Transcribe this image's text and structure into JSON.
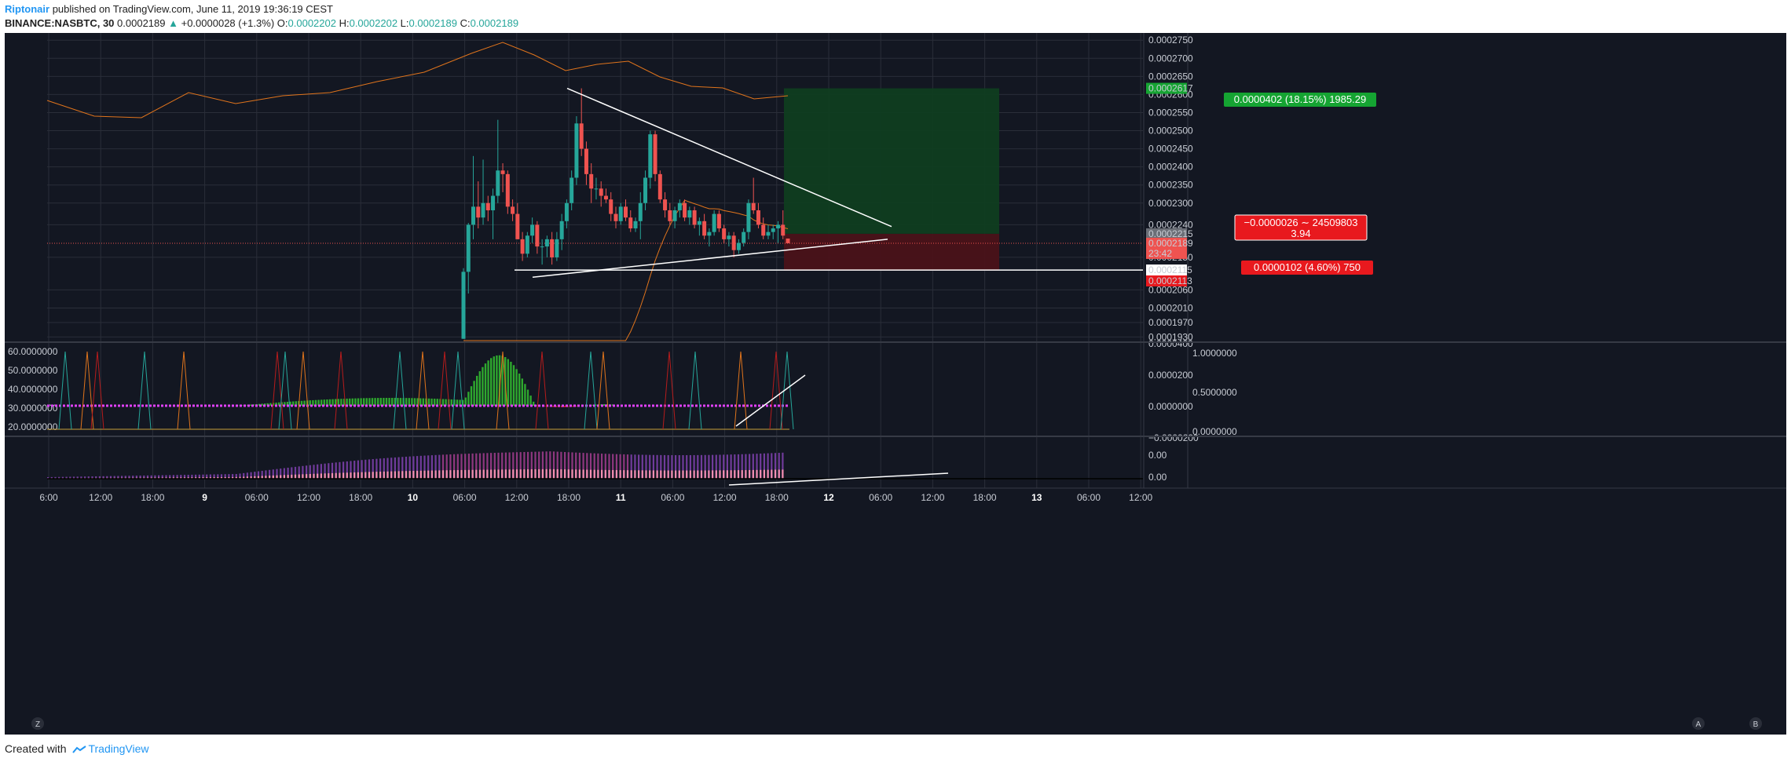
{
  "header": {
    "author": "Riptonair",
    "published_text": "published on TradingView.com, June 11, 2019 19:36:19 CEST",
    "symbol": "BINANCE:NASBTC, 30",
    "last": "0.0002189",
    "change": "+0.0000028 (+1.3%)",
    "o_label": "O:",
    "o": "0.0002202",
    "h_label": "H:",
    "h": "0.0002202",
    "l_label": "L:",
    "l": "0.0002189",
    "c_label": "C:",
    "c": "0.0002189"
  },
  "footer": {
    "created_with": "Created with",
    "brand": "TradingView"
  },
  "colors": {
    "background": "#131722",
    "grid": "#2a2e39",
    "up": "#26a69a",
    "down": "#ef5350",
    "target_zone": "#0f3d20",
    "stop_zone": "#4a1219",
    "ma": "#e0741c"
  },
  "chart_data": {
    "type": "candlestick",
    "price_axis": {
      "ticks": [
        "0.0002750",
        "0.0002700",
        "0.0002650",
        "0.0002600",
        "0.0002550",
        "0.0002500",
        "0.0002450",
        "0.0002400",
        "0.0002350",
        "0.0002300",
        "0.0002240",
        "0.0002150",
        "0.0002060",
        "0.0002010",
        "0.0001970",
        "0.0001930"
      ],
      "ylim": [
        0.000192,
        0.000277
      ]
    },
    "price_badges": [
      {
        "value": "0.0002617",
        "bg": "#15a432"
      },
      {
        "value": "0.0002215",
        "bg": "#6b6f77"
      },
      {
        "value": "0.0002189",
        "bg": "#ef5350"
      },
      {
        "value": "23:42",
        "bg": "#ef5350"
      },
      {
        "value": "0.0002115",
        "bg": "#ffffff"
      },
      {
        "value": "0.0002113",
        "bg": "#e8191e"
      }
    ],
    "time_axis": {
      "ticks": [
        "6:00",
        "12:00",
        "18:00",
        "9",
        "06:00",
        "12:00",
        "18:00",
        "10",
        "06:00",
        "12:00",
        "18:00",
        "11",
        "06:00",
        "12:00",
        "18:00",
        "12",
        "06:00",
        "12:00",
        "18:00",
        "13",
        "06:00",
        "12:00"
      ]
    },
    "candles_ohlc": [
      [
        0.0001925,
        0.000212,
        0.0001925,
        0.000211
      ],
      [
        0.000211,
        0.0002245,
        0.000205,
        0.000224
      ],
      [
        0.000224,
        0.000243,
        0.00022,
        0.000229
      ],
      [
        0.000229,
        0.000236,
        0.000223,
        0.000226
      ],
      [
        0.000226,
        0.000242,
        0.000224,
        0.00023
      ],
      [
        0.00023,
        0.000232,
        0.000225,
        0.000228
      ],
      [
        0.000228,
        0.000234,
        0.00022,
        0.000232
      ],
      [
        0.000232,
        0.000253,
        0.00023,
        0.000239
      ],
      [
        0.000239,
        0.000241,
        0.000233,
        0.000238
      ],
      [
        0.000238,
        0.000239,
        0.000227,
        0.000229
      ],
      [
        0.000229,
        0.000231,
        0.000225,
        0.000227
      ],
      [
        0.000227,
        0.00023,
        0.00022,
        0.00022
      ],
      [
        0.00022,
        0.000222,
        0.000214,
        0.000216
      ],
      [
        0.000216,
        0.000222,
        0.000215,
        0.000221
      ],
      [
        0.000221,
        0.000226,
        0.000219,
        0.000224
      ],
      [
        0.000224,
        0.000225,
        0.000216,
        0.000218
      ],
      [
        0.000218,
        0.00022,
        0.000213,
        0.000218
      ],
      [
        0.000218,
        0.000221,
        0.000215,
        0.00022
      ],
      [
        0.00022,
        0.000222,
        0.000213,
        0.000215
      ],
      [
        0.000215,
        0.000222,
        0.000214,
        0.00022
      ],
      [
        0.00022,
        0.000227,
        0.000217,
        0.000225
      ],
      [
        0.000225,
        0.000231,
        0.000223,
        0.00023
      ],
      [
        0.00023,
        0.000239,
        0.000228,
        0.000237
      ],
      [
        0.000237,
        0.000254,
        0.000235,
        0.000252
      ],
      [
        0.000252,
        0.0002617,
        0.000243,
        0.000245
      ],
      [
        0.000245,
        0.000247,
        0.000235,
        0.000238
      ],
      [
        0.000238,
        0.000241,
        0.00023,
        0.000234
      ],
      [
        0.000234,
        0.000237,
        0.000231,
        0.000234
      ],
      [
        0.000234,
        0.000236,
        0.000229,
        0.000232
      ],
      [
        0.000232,
        0.000234,
        0.00023,
        0.000231
      ],
      [
        0.000231,
        0.000233,
        0.000225,
        0.000227
      ],
      [
        0.000227,
        0.000229,
        0.000223,
        0.000225
      ],
      [
        0.000225,
        0.00023,
        0.000224,
        0.000229
      ],
      [
        0.000229,
        0.000231,
        0.000225,
        0.000226
      ],
      [
        0.000226,
        0.000228,
        0.000222,
        0.000223
      ],
      [
        0.000223,
        0.000226,
        0.000222,
        0.000225
      ],
      [
        0.000225,
        0.000233,
        0.00022,
        0.00023
      ],
      [
        0.00023,
        0.000239,
        0.000228,
        0.000237
      ],
      [
        0.000237,
        0.00025,
        0.000234,
        0.000249
      ],
      [
        0.000249,
        0.00025,
        0.000236,
        0.000238
      ],
      [
        0.000238,
        0.000239,
        0.00023,
        0.000231
      ],
      [
        0.000231,
        0.000233,
        0.000226,
        0.000228
      ],
      [
        0.000228,
        0.00023,
        0.000224,
        0.000225
      ],
      [
        0.000225,
        0.000229,
        0.000223,
        0.000228
      ],
      [
        0.000228,
        0.000231,
        0.000226,
        0.00023
      ],
      [
        0.00023,
        0.000231,
        0.000225,
        0.000226
      ],
      [
        0.000226,
        0.000229,
        0.000224,
        0.000228
      ],
      [
        0.000228,
        0.000229,
        0.000223,
        0.000224
      ],
      [
        0.000224,
        0.000226,
        0.000221,
        0.000225
      ],
      [
        0.000225,
        0.000227,
        0.00022,
        0.000221
      ],
      [
        0.000221,
        0.000223,
        0.000218,
        0.000222
      ],
      [
        0.000222,
        0.000228,
        0.000221,
        0.000227
      ],
      [
        0.000227,
        0.000228,
        0.000222,
        0.000223
      ],
      [
        0.000223,
        0.000224,
        0.000219,
        0.00022
      ],
      [
        0.00022,
        0.000222,
        0.000218,
        0.000221
      ],
      [
        0.000221,
        0.000222,
        0.000215,
        0.000217
      ],
      [
        0.000217,
        0.00022,
        0.000216,
        0.000219
      ],
      [
        0.000219,
        0.000223,
        0.000218,
        0.000222
      ],
      [
        0.000222,
        0.000231,
        0.00022,
        0.00023
      ],
      [
        0.00023,
        0.000237,
        0.000227,
        0.000228
      ],
      [
        0.000228,
        0.00023,
        0.000223,
        0.000224
      ],
      [
        0.000224,
        0.000226,
        0.00022,
        0.000221
      ],
      [
        0.000221,
        0.000224,
        0.00022,
        0.000222
      ],
      [
        0.000222,
        0.000224,
        0.00022,
        0.000223
      ],
      [
        0.000223,
        0.000225,
        0.000219,
        0.000224
      ],
      [
        0.000224,
        0.000228,
        0.00022,
        0.000221
      ],
      [
        0.0002202,
        0.0002202,
        0.0002189,
        0.0002189
      ]
    ],
    "trendlines_price": [
      {
        "name": "descending-resistance",
        "from": [
          0.1,
          0.0002617
        ],
        "to": [
          0.95,
          0.0002235
        ]
      },
      {
        "name": "ascending-support",
        "from": [
          0.07,
          0.0002095
        ],
        "to": [
          0.95,
          0.00022
        ]
      },
      {
        "name": "horizontal-support",
        "from": [
          0.0,
          0.0002115
        ],
        "to": [
          1.0,
          0.0002115
        ]
      }
    ],
    "position_tool": {
      "entry": "0.0002215",
      "target": "0.0002617",
      "stop": "0.0002113",
      "target_label": "0.0000402 (18.15%) 1985.29",
      "stop_label": "0.0000102 (4.60%) 750",
      "open_label_line1": "−0.0000026 ∼ 24509803",
      "open_label_line2": "3.94"
    },
    "osc1": {
      "left_ticks": [
        "60.0000000",
        "50.0000000",
        "40.0000000",
        "30.0000000",
        "20.0000000"
      ],
      "right_ticks": [
        "0.0000400",
        "0.0000200",
        "0.0000000",
        "−0.0000200"
      ],
      "right2_ticks": [
        "1.0000000",
        "0.5000000",
        "0.0000000"
      ]
    },
    "osc2": {
      "right_ticks": [
        "0.00",
        "0.00"
      ]
    },
    "bottom_buttons": [
      "Z",
      "A",
      "B"
    ]
  }
}
